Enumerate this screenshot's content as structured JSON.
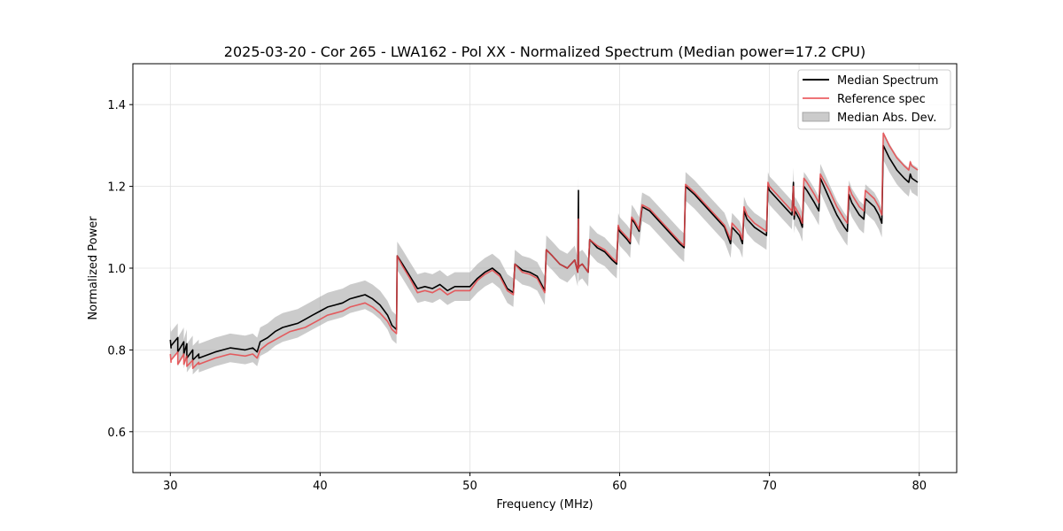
{
  "chart_data": {
    "type": "line",
    "title": "2025-03-20 - Cor 265 - LWA162 - Pol XX - Normalized Spectrum (Median power=17.2 CPU)",
    "xlabel": "Frequency (MHz)",
    "ylabel": "Normalized Power",
    "xlim": [
      27.5,
      82.5
    ],
    "ylim": [
      0.5,
      1.5
    ],
    "xticks": [
      30,
      40,
      50,
      60,
      70,
      80
    ],
    "yticks": [
      0.6,
      0.8,
      1.0,
      1.2,
      1.4
    ],
    "xtick_labels": [
      "30",
      "40",
      "50",
      "60",
      "70",
      "80"
    ],
    "ytick_labels": [
      "0.6",
      "0.8",
      "1.0",
      "1.2",
      "1.4"
    ],
    "grid": true,
    "legend_position": "top-right",
    "legend": [
      "Median Spectrum",
      "Reference spec",
      "Median Abs. Dev."
    ],
    "colors": {
      "median": "#000000",
      "reference": "#e8474a",
      "mad_fill": "#a8a8a8",
      "overlap": "#8b0000"
    },
    "band_halfwidth": 0.035,
    "series": [
      {
        "name": "Median Spectrum",
        "x": [
          30.0,
          30.05,
          30.05,
          30.5,
          30.5,
          30.9,
          30.9,
          31.1,
          31.1,
          31.5,
          31.5,
          31.9,
          31.9,
          33.0,
          34.0,
          35.0,
          35.5,
          35.8,
          36.0,
          36.5,
          37.0,
          37.5,
          38.0,
          38.5,
          39.0,
          39.5,
          40.0,
          40.5,
          41.0,
          41.5,
          42.0,
          42.5,
          43.0,
          43.5,
          44.0,
          44.5,
          44.8,
          45.1,
          45.15,
          45.5,
          46.0,
          46.5,
          47.0,
          47.5,
          48.0,
          48.5,
          49.0,
          49.5,
          50.0,
          50.5,
          51.0,
          51.5,
          52.0,
          52.5,
          52.9,
          53.0,
          53.5,
          54.0,
          54.5,
          55.0,
          55.1,
          55.5,
          56.0,
          56.5,
          57.0,
          57.2,
          57.25,
          57.25,
          57.3,
          57.5,
          57.7,
          57.9,
          58.0,
          58.5,
          59.0,
          59.5,
          59.8,
          59.9,
          60.0,
          60.5,
          60.7,
          60.8,
          61.0,
          61.3,
          61.5,
          62.0,
          63.0,
          64.0,
          64.3,
          64.4,
          65.0,
          66.0,
          67.0,
          67.4,
          67.5,
          68.0,
          68.2,
          68.3,
          68.5,
          69.0,
          69.8,
          69.9,
          70.0,
          70.5,
          71.0,
          71.5,
          71.6,
          71.65,
          71.7,
          72.0,
          72.2,
          72.3,
          72.5,
          73.0,
          73.3,
          73.4,
          74.0,
          74.5,
          75.0,
          75.2,
          75.3,
          75.5,
          76.0,
          76.3,
          76.4,
          77.0,
          77.3,
          77.5,
          77.6,
          78.0,
          78.5,
          79.0,
          79.3,
          79.4,
          79.5,
          79.9
        ],
        "y": [
          0.825,
          0.805,
          0.81,
          0.83,
          0.795,
          0.82,
          0.79,
          0.815,
          0.78,
          0.8,
          0.775,
          0.79,
          0.78,
          0.795,
          0.805,
          0.8,
          0.805,
          0.795,
          0.82,
          0.83,
          0.845,
          0.855,
          0.86,
          0.865,
          0.875,
          0.885,
          0.895,
          0.905,
          0.91,
          0.915,
          0.925,
          0.93,
          0.935,
          0.925,
          0.91,
          0.885,
          0.86,
          0.85,
          1.03,
          1.01,
          0.98,
          0.95,
          0.955,
          0.95,
          0.96,
          0.945,
          0.955,
          0.955,
          0.955,
          0.975,
          0.99,
          1.0,
          0.985,
          0.95,
          0.94,
          1.01,
          0.995,
          0.99,
          0.98,
          0.945,
          1.045,
          1.03,
          1.01,
          1.0,
          1.02,
          0.99,
          1.19,
          1.0,
          1.005,
          1.01,
          1.0,
          0.99,
          1.07,
          1.05,
          1.04,
          1.02,
          1.01,
          1.1,
          1.09,
          1.07,
          1.06,
          1.12,
          1.11,
          1.09,
          1.15,
          1.14,
          1.1,
          1.06,
          1.05,
          1.2,
          1.18,
          1.14,
          1.1,
          1.06,
          1.1,
          1.08,
          1.06,
          1.14,
          1.12,
          1.1,
          1.08,
          1.2,
          1.19,
          1.17,
          1.15,
          1.13,
          1.21,
          1.12,
          1.14,
          1.12,
          1.1,
          1.2,
          1.19,
          1.16,
          1.14,
          1.22,
          1.17,
          1.13,
          1.1,
          1.09,
          1.18,
          1.16,
          1.13,
          1.12,
          1.17,
          1.15,
          1.13,
          1.11,
          1.3,
          1.27,
          1.24,
          1.22,
          1.21,
          1.23,
          1.22,
          1.21
        ]
      },
      {
        "name": "Reference spec",
        "x": [
          30.0,
          30.05,
          30.05,
          30.5,
          30.5,
          30.9,
          30.9,
          31.1,
          31.1,
          31.5,
          31.5,
          31.9,
          31.9,
          33.0,
          34.0,
          35.0,
          35.5,
          35.8,
          36.0,
          36.5,
          37.0,
          37.5,
          38.0,
          38.5,
          39.0,
          39.5,
          40.0,
          40.5,
          41.0,
          41.5,
          42.0,
          42.5,
          43.0,
          43.5,
          44.0,
          44.5,
          44.8,
          45.1,
          45.15,
          45.5,
          46.0,
          46.5,
          47.0,
          47.5,
          48.0,
          48.5,
          49.0,
          49.5,
          50.0,
          50.5,
          51.0,
          51.5,
          52.0,
          52.5,
          52.9,
          53.0,
          53.5,
          54.0,
          54.5,
          55.0,
          55.1,
          55.5,
          56.0,
          56.5,
          57.0,
          57.2,
          57.25,
          57.25,
          57.3,
          57.5,
          57.7,
          57.9,
          58.0,
          58.5,
          59.0,
          59.5,
          59.8,
          59.9,
          60.0,
          60.5,
          60.7,
          60.8,
          61.0,
          61.3,
          61.5,
          62.0,
          63.0,
          64.0,
          64.3,
          64.4,
          65.0,
          66.0,
          67.0,
          67.4,
          67.5,
          68.0,
          68.2,
          68.3,
          68.5,
          69.0,
          69.8,
          69.9,
          70.0,
          70.5,
          71.0,
          71.5,
          71.6,
          71.65,
          71.7,
          72.0,
          72.2,
          72.3,
          72.5,
          73.0,
          73.3,
          73.4,
          74.0,
          74.5,
          75.0,
          75.2,
          75.3,
          75.5,
          76.0,
          76.3,
          76.4,
          77.0,
          77.3,
          77.5,
          77.6,
          78.0,
          78.5,
          79.0,
          79.3,
          79.4,
          79.5,
          79.9
        ],
        "y": [
          0.79,
          0.77,
          0.775,
          0.795,
          0.765,
          0.79,
          0.765,
          0.785,
          0.76,
          0.775,
          0.755,
          0.77,
          0.765,
          0.78,
          0.79,
          0.785,
          0.79,
          0.78,
          0.8,
          0.815,
          0.825,
          0.835,
          0.845,
          0.85,
          0.855,
          0.865,
          0.875,
          0.885,
          0.89,
          0.895,
          0.905,
          0.91,
          0.915,
          0.905,
          0.89,
          0.87,
          0.85,
          0.84,
          1.03,
          1.005,
          0.975,
          0.94,
          0.945,
          0.94,
          0.95,
          0.935,
          0.945,
          0.945,
          0.945,
          0.97,
          0.985,
          0.995,
          0.98,
          0.945,
          0.935,
          1.01,
          0.99,
          0.985,
          0.975,
          0.94,
          1.045,
          1.03,
          1.01,
          1.0,
          1.02,
          0.99,
          1.12,
          1.0,
          1.005,
          1.01,
          1.0,
          0.99,
          1.07,
          1.055,
          1.045,
          1.025,
          1.015,
          1.105,
          1.095,
          1.075,
          1.065,
          1.125,
          1.115,
          1.095,
          1.155,
          1.145,
          1.105,
          1.065,
          1.055,
          1.205,
          1.185,
          1.145,
          1.105,
          1.07,
          1.11,
          1.09,
          1.07,
          1.15,
          1.13,
          1.11,
          1.09,
          1.21,
          1.2,
          1.18,
          1.16,
          1.14,
          1.2,
          1.13,
          1.15,
          1.13,
          1.11,
          1.22,
          1.21,
          1.18,
          1.16,
          1.23,
          1.19,
          1.15,
          1.12,
          1.11,
          1.2,
          1.18,
          1.15,
          1.14,
          1.19,
          1.17,
          1.15,
          1.13,
          1.33,
          1.3,
          1.27,
          1.25,
          1.24,
          1.26,
          1.25,
          1.24
        ]
      }
    ]
  }
}
